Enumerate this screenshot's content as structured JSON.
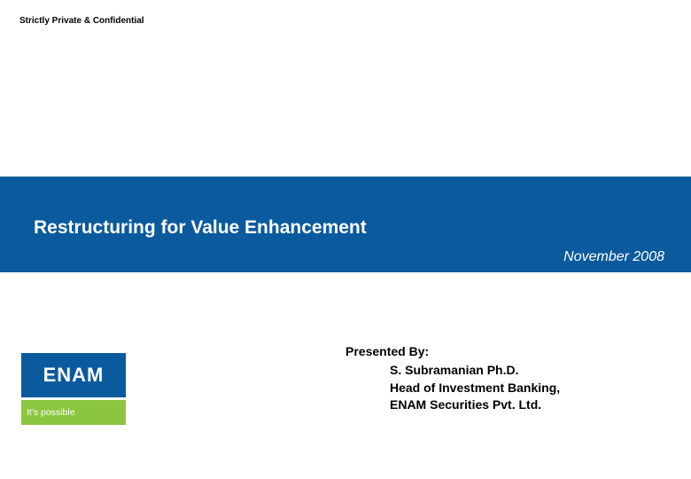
{
  "header": {
    "confidential": "Strictly Private & Confidential"
  },
  "titleBar": {
    "title": "Restructuring for Value Enhancement",
    "date": "November 2008",
    "background": "#0b5a9d",
    "textColor": "#ffffff"
  },
  "presenter": {
    "heading": "Presented By:",
    "name": "S. Subramanian Ph.D.",
    "role": "Head of Investment Banking,",
    "company": "ENAM Securities Pvt. Ltd."
  },
  "logo": {
    "topText": "ENAM",
    "bottomText": "It's possible",
    "topColor": "#0b5a9d",
    "bottomColor": "#8cc63f",
    "textColor": "#ffffff"
  }
}
